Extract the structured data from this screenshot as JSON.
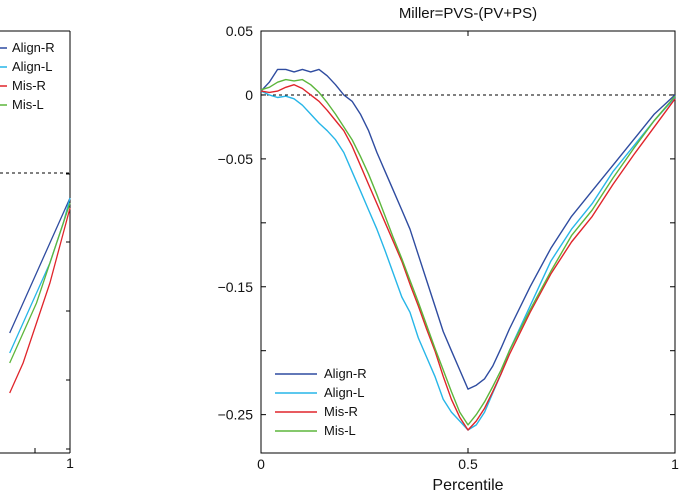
{
  "chart_data": [
    {
      "type": "line",
      "title": "",
      "xlabel": "",
      "ylabel": "",
      "xlim": [
        0,
        1
      ],
      "x_ticks": [
        {
          "value": 1,
          "label": "1"
        }
      ],
      "y_ticks": [],
      "reference_line": {
        "y": 0,
        "style": "dashed"
      },
      "legend": {
        "placement": "top-left",
        "entries": [
          "Align-R",
          "Align-L",
          "Mis-R",
          "Mis-L"
        ]
      },
      "series": [
        {
          "name": "Align-R",
          "color": "#2f4ca0",
          "x": [
            0.91,
            0.93,
            0.95,
            0.97,
            0.99,
            1.0
          ],
          "y": [
            -0.16,
            -0.13,
            -0.1,
            -0.07,
            -0.04,
            -0.025
          ]
        },
        {
          "name": "Align-L",
          "color": "#27b6e8",
          "x": [
            0.91,
            0.93,
            0.95,
            0.97,
            0.99,
            1.0
          ],
          "y": [
            -0.18,
            -0.15,
            -0.12,
            -0.09,
            -0.05,
            -0.025
          ]
        },
        {
          "name": "Mis-R",
          "color": "#e0252b",
          "x": [
            0.91,
            0.93,
            0.95,
            0.97,
            0.99,
            1.0
          ],
          "y": [
            -0.22,
            -0.19,
            -0.15,
            -0.11,
            -0.06,
            -0.035
          ]
        },
        {
          "name": "Mis-L",
          "color": "#5db63c",
          "x": [
            0.91,
            0.93,
            0.95,
            0.97,
            0.99,
            1.0
          ],
          "y": [
            -0.19,
            -0.16,
            -0.13,
            -0.09,
            -0.05,
            -0.03
          ]
        }
      ]
    },
    {
      "type": "line",
      "title": "Miller=PVS-(PV+PS)",
      "xlabel": "Percentile",
      "ylabel": "",
      "xlim": [
        0,
        1
      ],
      "ylim": [
        -0.28,
        0.05
      ],
      "x_ticks": [
        {
          "value": 0,
          "label": "0"
        },
        {
          "value": 0.5,
          "label": "0.5"
        },
        {
          "value": 1,
          "label": "1"
        }
      ],
      "y_ticks": [
        {
          "value": 0.05,
          "label": "0.05"
        },
        {
          "value": 0,
          "label": "0"
        },
        {
          "value": -0.05,
          "label": "−0.05"
        },
        {
          "value": -0.15,
          "label": "−0.15"
        },
        {
          "value": -0.25,
          "label": "−0.25"
        }
      ],
      "minor_y_ticks": [
        -0.1,
        -0.2
      ],
      "reference_line": {
        "y": 0,
        "style": "dashed"
      },
      "legend": {
        "placement": "bottom-left",
        "entries": [
          "Align-R",
          "Align-L",
          "Mis-R",
          "Mis-L"
        ]
      },
      "series": [
        {
          "name": "Align-R",
          "color": "#2f4ca0",
          "x": [
            0,
            0.02,
            0.04,
            0.06,
            0.08,
            0.1,
            0.12,
            0.14,
            0.16,
            0.18,
            0.2,
            0.22,
            0.24,
            0.26,
            0.28,
            0.3,
            0.32,
            0.34,
            0.36,
            0.38,
            0.4,
            0.42,
            0.44,
            0.46,
            0.48,
            0.5,
            0.52,
            0.54,
            0.56,
            0.58,
            0.6,
            0.65,
            0.7,
            0.75,
            0.8,
            0.85,
            0.9,
            0.95,
            1.0
          ],
          "y": [
            0.003,
            0.01,
            0.02,
            0.02,
            0.018,
            0.02,
            0.018,
            0.02,
            0.015,
            0.008,
            0.0,
            -0.005,
            -0.015,
            -0.028,
            -0.045,
            -0.06,
            -0.075,
            -0.09,
            -0.105,
            -0.125,
            -0.145,
            -0.165,
            -0.185,
            -0.2,
            -0.215,
            -0.23,
            -0.227,
            -0.222,
            -0.212,
            -0.198,
            -0.183,
            -0.15,
            -0.12,
            -0.095,
            -0.075,
            -0.055,
            -0.035,
            -0.015,
            0.0
          ]
        },
        {
          "name": "Align-L",
          "color": "#27b6e8",
          "x": [
            0,
            0.02,
            0.04,
            0.06,
            0.08,
            0.1,
            0.12,
            0.14,
            0.16,
            0.18,
            0.2,
            0.22,
            0.24,
            0.26,
            0.28,
            0.3,
            0.32,
            0.34,
            0.36,
            0.38,
            0.4,
            0.42,
            0.44,
            0.46,
            0.48,
            0.5,
            0.52,
            0.54,
            0.56,
            0.58,
            0.6,
            0.65,
            0.7,
            0.75,
            0.8,
            0.85,
            0.9,
            0.95,
            1.0
          ],
          "y": [
            0.003,
            0.0,
            -0.002,
            -0.001,
            -0.003,
            -0.008,
            -0.015,
            -0.022,
            -0.028,
            -0.035,
            -0.045,
            -0.06,
            -0.075,
            -0.09,
            -0.105,
            -0.122,
            -0.14,
            -0.158,
            -0.17,
            -0.19,
            -0.205,
            -0.22,
            -0.238,
            -0.248,
            -0.255,
            -0.262,
            -0.258,
            -0.248,
            -0.233,
            -0.218,
            -0.2,
            -0.165,
            -0.13,
            -0.105,
            -0.085,
            -0.06,
            -0.04,
            -0.02,
            -0.002
          ]
        },
        {
          "name": "Mis-R",
          "color": "#e0252b",
          "x": [
            0,
            0.02,
            0.04,
            0.06,
            0.08,
            0.1,
            0.12,
            0.14,
            0.16,
            0.18,
            0.2,
            0.22,
            0.24,
            0.26,
            0.28,
            0.3,
            0.32,
            0.34,
            0.36,
            0.38,
            0.4,
            0.42,
            0.44,
            0.46,
            0.48,
            0.5,
            0.52,
            0.54,
            0.56,
            0.58,
            0.6,
            0.65,
            0.7,
            0.75,
            0.8,
            0.85,
            0.9,
            0.95,
            1.0
          ],
          "y": [
            0.003,
            0.002,
            0.003,
            0.006,
            0.008,
            0.005,
            0.0,
            -0.005,
            -0.012,
            -0.02,
            -0.028,
            -0.04,
            -0.055,
            -0.07,
            -0.085,
            -0.1,
            -0.115,
            -0.13,
            -0.148,
            -0.165,
            -0.183,
            -0.2,
            -0.22,
            -0.238,
            -0.252,
            -0.262,
            -0.255,
            -0.245,
            -0.232,
            -0.218,
            -0.203,
            -0.17,
            -0.14,
            -0.115,
            -0.095,
            -0.07,
            -0.047,
            -0.025,
            -0.003
          ]
        },
        {
          "name": "Mis-L",
          "color": "#5db63c",
          "x": [
            0,
            0.02,
            0.04,
            0.06,
            0.08,
            0.1,
            0.12,
            0.14,
            0.16,
            0.18,
            0.2,
            0.22,
            0.24,
            0.26,
            0.28,
            0.3,
            0.32,
            0.34,
            0.36,
            0.38,
            0.4,
            0.42,
            0.44,
            0.46,
            0.48,
            0.5,
            0.52,
            0.54,
            0.56,
            0.58,
            0.6,
            0.65,
            0.7,
            0.75,
            0.8,
            0.85,
            0.9,
            0.95,
            1.0
          ],
          "y": [
            0.004,
            0.006,
            0.01,
            0.012,
            0.011,
            0.012,
            0.008,
            0.002,
            -0.006,
            -0.015,
            -0.025,
            -0.035,
            -0.048,
            -0.062,
            -0.078,
            -0.095,
            -0.112,
            -0.128,
            -0.145,
            -0.162,
            -0.18,
            -0.198,
            -0.215,
            -0.232,
            -0.248,
            -0.258,
            -0.25,
            -0.24,
            -0.228,
            -0.215,
            -0.2,
            -0.168,
            -0.138,
            -0.11,
            -0.09,
            -0.065,
            -0.042,
            -0.02,
            -0.001
          ]
        }
      ]
    }
  ]
}
